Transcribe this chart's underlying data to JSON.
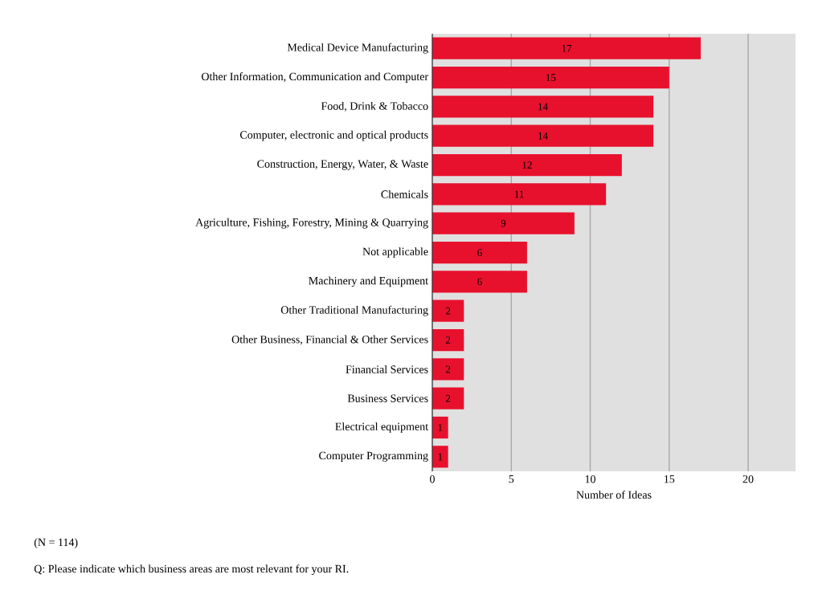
{
  "chart_data": {
    "type": "bar",
    "orientation": "horizontal",
    "xlabel": "Number of Ideas",
    "categories": [
      "Medical Device Manufacturing",
      "Other Information, Communication and Computer",
      "Food, Drink & Tobacco",
      "Computer, electronic and optical products",
      "Construction, Energy, Water, & Waste",
      "Chemicals",
      "Agriculture, Fishing, Forestry, Mining & Quarrying",
      "Not applicable",
      "Machinery and Equipment",
      "Other Traditional Manufacturing",
      "Other Business, Financial & Other Services",
      "Financial Services",
      "Business Services",
      "Electrical equipment",
      "Computer Programming"
    ],
    "values": [
      17,
      15,
      14,
      14,
      12,
      11,
      9,
      6,
      6,
      2,
      2,
      2,
      2,
      1,
      1
    ],
    "color": "#e8112d",
    "data_labels": true,
    "xlim": [
      0,
      23
    ],
    "xticks": [
      0,
      5,
      10,
      15,
      20
    ],
    "grid": "x",
    "annotations": [
      "(N = 114)",
      "Q: Please indicate which business areas are most relevant for your RI."
    ]
  }
}
